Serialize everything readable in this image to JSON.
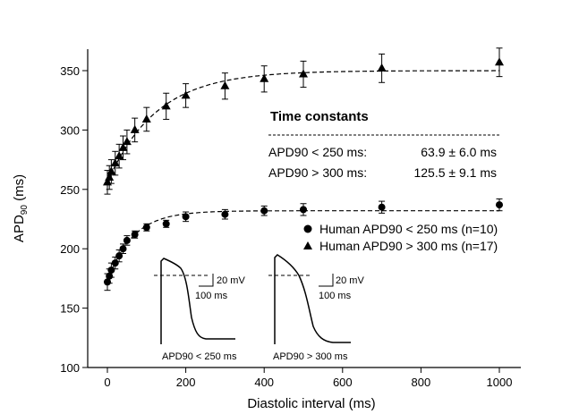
{
  "chart_data": {
    "type": "scatter",
    "xlabel": "Diastolic interval (ms)",
    "ylabel_main": "APD",
    "ylabel_sub": "90",
    "ylabel_unit": " (ms)",
    "xlim": [
      -40,
      1040
    ],
    "ylim": [
      100,
      375
    ],
    "x_ticks": [
      0,
      200,
      400,
      600,
      800,
      1000
    ],
    "y_ticks": [
      100,
      150,
      200,
      250,
      300,
      350
    ],
    "grid": false,
    "legend_position": "right-middle",
    "series": [
      {
        "name": "Human APD90 < 250 ms (n=10)",
        "marker": "circle",
        "color": "#000000",
        "fit_plateau": 232,
        "points": [
          {
            "x": 0,
            "y": 172,
            "err": 7
          },
          {
            "x": 5,
            "y": 177,
            "err": 6
          },
          {
            "x": 10,
            "y": 182,
            "err": 6
          },
          {
            "x": 20,
            "y": 188,
            "err": 5
          },
          {
            "x": 30,
            "y": 194,
            "err": 5
          },
          {
            "x": 40,
            "y": 200,
            "err": 4
          },
          {
            "x": 50,
            "y": 207,
            "err": 4
          },
          {
            "x": 70,
            "y": 212,
            "err": 3
          },
          {
            "x": 100,
            "y": 218,
            "err": 3
          },
          {
            "x": 150,
            "y": 221,
            "err": 3
          },
          {
            "x": 200,
            "y": 227,
            "err": 4
          },
          {
            "x": 300,
            "y": 229,
            "err": 4
          },
          {
            "x": 400,
            "y": 232,
            "err": 4
          },
          {
            "x": 500,
            "y": 233,
            "err": 5
          },
          {
            "x": 700,
            "y": 235,
            "err": 5
          },
          {
            "x": 1000,
            "y": 237,
            "err": 5
          }
        ]
      },
      {
        "name": "Human APD90 > 300 ms (n=17)",
        "marker": "triangle",
        "color": "#000000",
        "fit_plateau": 350,
        "points": [
          {
            "x": 0,
            "y": 256,
            "err": 10
          },
          {
            "x": 5,
            "y": 260,
            "err": 10
          },
          {
            "x": 10,
            "y": 265,
            "err": 10
          },
          {
            "x": 20,
            "y": 272,
            "err": 10
          },
          {
            "x": 30,
            "y": 278,
            "err": 10
          },
          {
            "x": 40,
            "y": 285,
            "err": 10
          },
          {
            "x": 50,
            "y": 290,
            "err": 10
          },
          {
            "x": 70,
            "y": 300,
            "err": 10
          },
          {
            "x": 100,
            "y": 309,
            "err": 10
          },
          {
            "x": 150,
            "y": 320,
            "err": 11
          },
          {
            "x": 200,
            "y": 329,
            "err": 10
          },
          {
            "x": 300,
            "y": 337,
            "err": 11
          },
          {
            "x": 400,
            "y": 343,
            "err": 11
          },
          {
            "x": 500,
            "y": 347,
            "err": 11
          },
          {
            "x": 700,
            "y": 352,
            "err": 12
          },
          {
            "x": 1000,
            "y": 357,
            "err": 12
          }
        ]
      }
    ],
    "time_constants": {
      "title": "Time constants",
      "rows": [
        {
          "label": "APD90 < 250 ms:",
          "value": "63.9 ± 6.0 ms"
        },
        {
          "label": "APD90 > 300 ms:",
          "value": "125.5 ± 9.1 ms"
        }
      ]
    },
    "insets": [
      {
        "caption": "APD90 < 250 ms",
        "voltage_scale": "20 mV",
        "time_scale": "100 ms"
      },
      {
        "caption": "APD90 > 300 ms",
        "voltage_scale": "20 mV",
        "time_scale": "100 ms"
      }
    ]
  }
}
